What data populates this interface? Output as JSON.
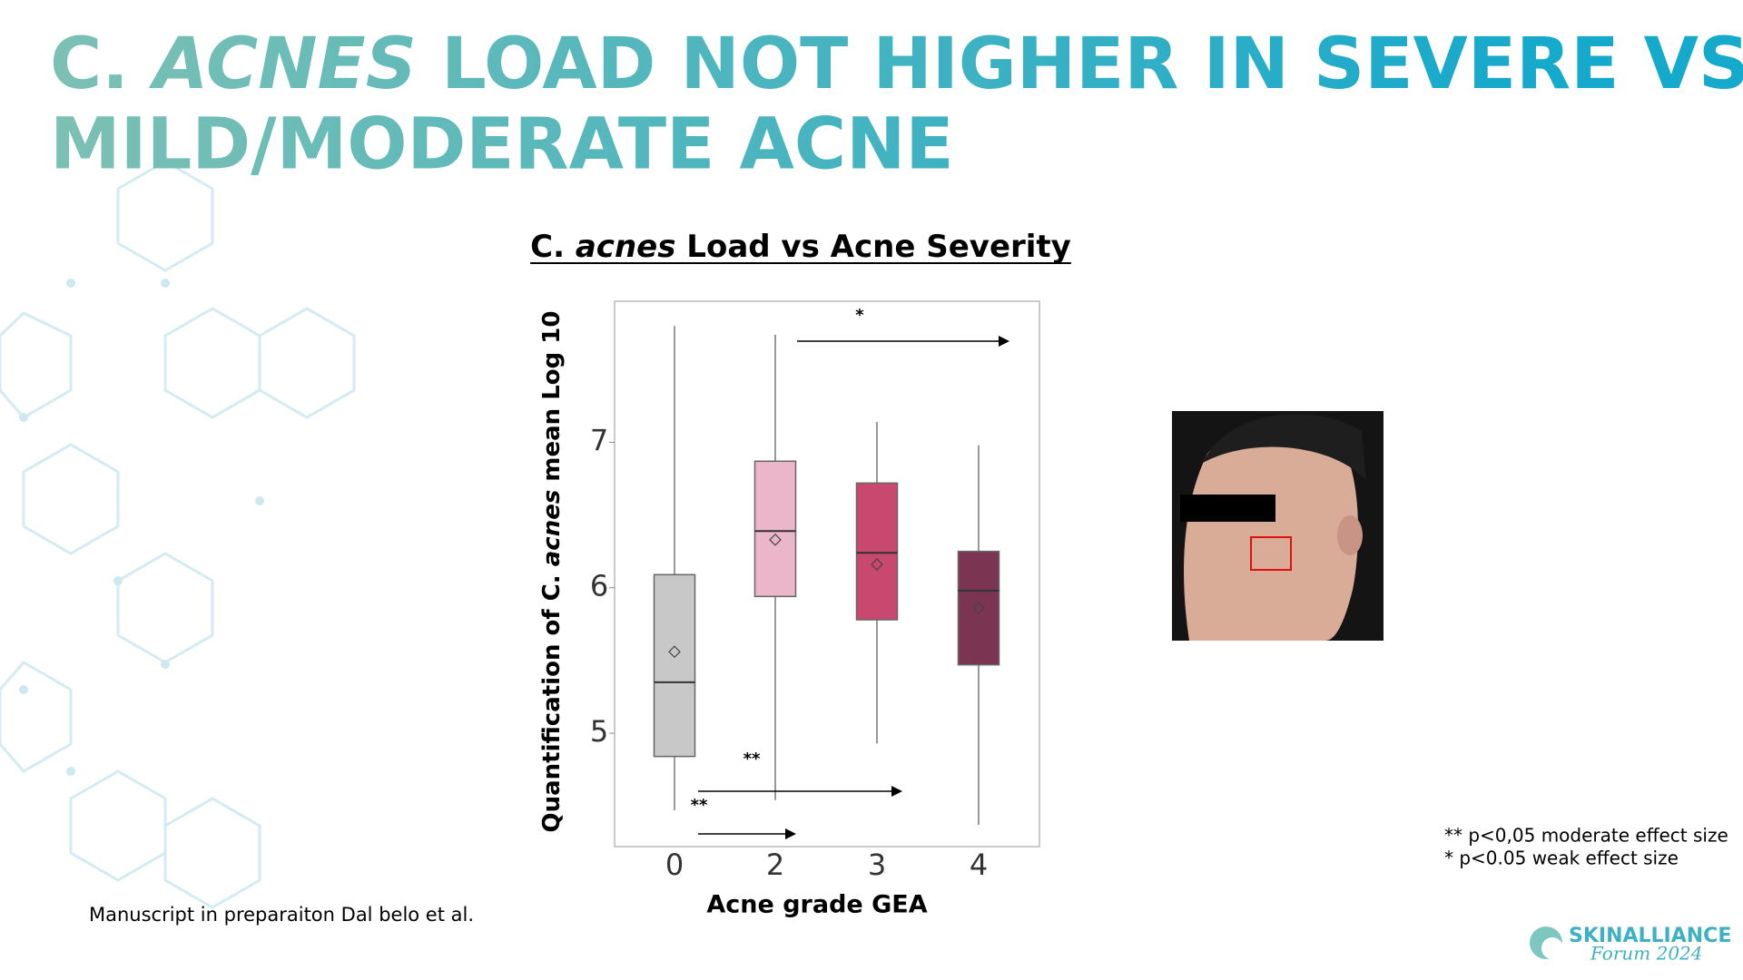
{
  "title": [
    "C. ",
    "ACNES",
    " LOAD NOT HIGHER IN SEVERE VS",
    "MILD/MODERATE ACNE"
  ],
  "chart_data": {
    "type": "box",
    "title": [
      "C. ",
      "acnes",
      " Load vs Acne Severity"
    ],
    "ylabel": [
      "Quantification of C. ",
      "acnes",
      " mean Log 10"
    ],
    "xlabel": "Acne grade GEA",
    "categories": [
      "0",
      "2",
      "3",
      "4"
    ],
    "boxes": [
      {
        "whisker_low": 4.47,
        "q1": 4.84,
        "median": 5.35,
        "q3": 6.09,
        "whisker_high": 7.8,
        "mean": 5.56,
        "color": "#c8c8c8"
      },
      {
        "whisker_low": 4.54,
        "q1": 5.94,
        "median": 6.39,
        "q3": 6.87,
        "whisker_high": 7.74,
        "mean": 6.33,
        "color": "#ebb5ca"
      },
      {
        "whisker_low": 4.93,
        "q1": 5.78,
        "median": 6.24,
        "q3": 6.72,
        "whisker_high": 7.14,
        "mean": 6.16,
        "color": "#c9486f"
      },
      {
        "whisker_low": 4.37,
        "q1": 5.47,
        "median": 5.98,
        "q3": 6.25,
        "whisker_high": 6.98,
        "mean": 5.86,
        "color": "#7b3552"
      }
    ],
    "ylim": [
      4.22,
      7.97
    ],
    "yticks": [
      5,
      6,
      7
    ],
    "annotations": [
      "*",
      "**",
      "**"
    ]
  },
  "footnotes": [
    "** p<0,05 moderate effect size",
    "* p<0.05 weak effect size"
  ],
  "reference": "Manuscript in preparaiton Dal belo et al.",
  "logo": [
    "SKINALLIANCE",
    "Forum 2024"
  ]
}
